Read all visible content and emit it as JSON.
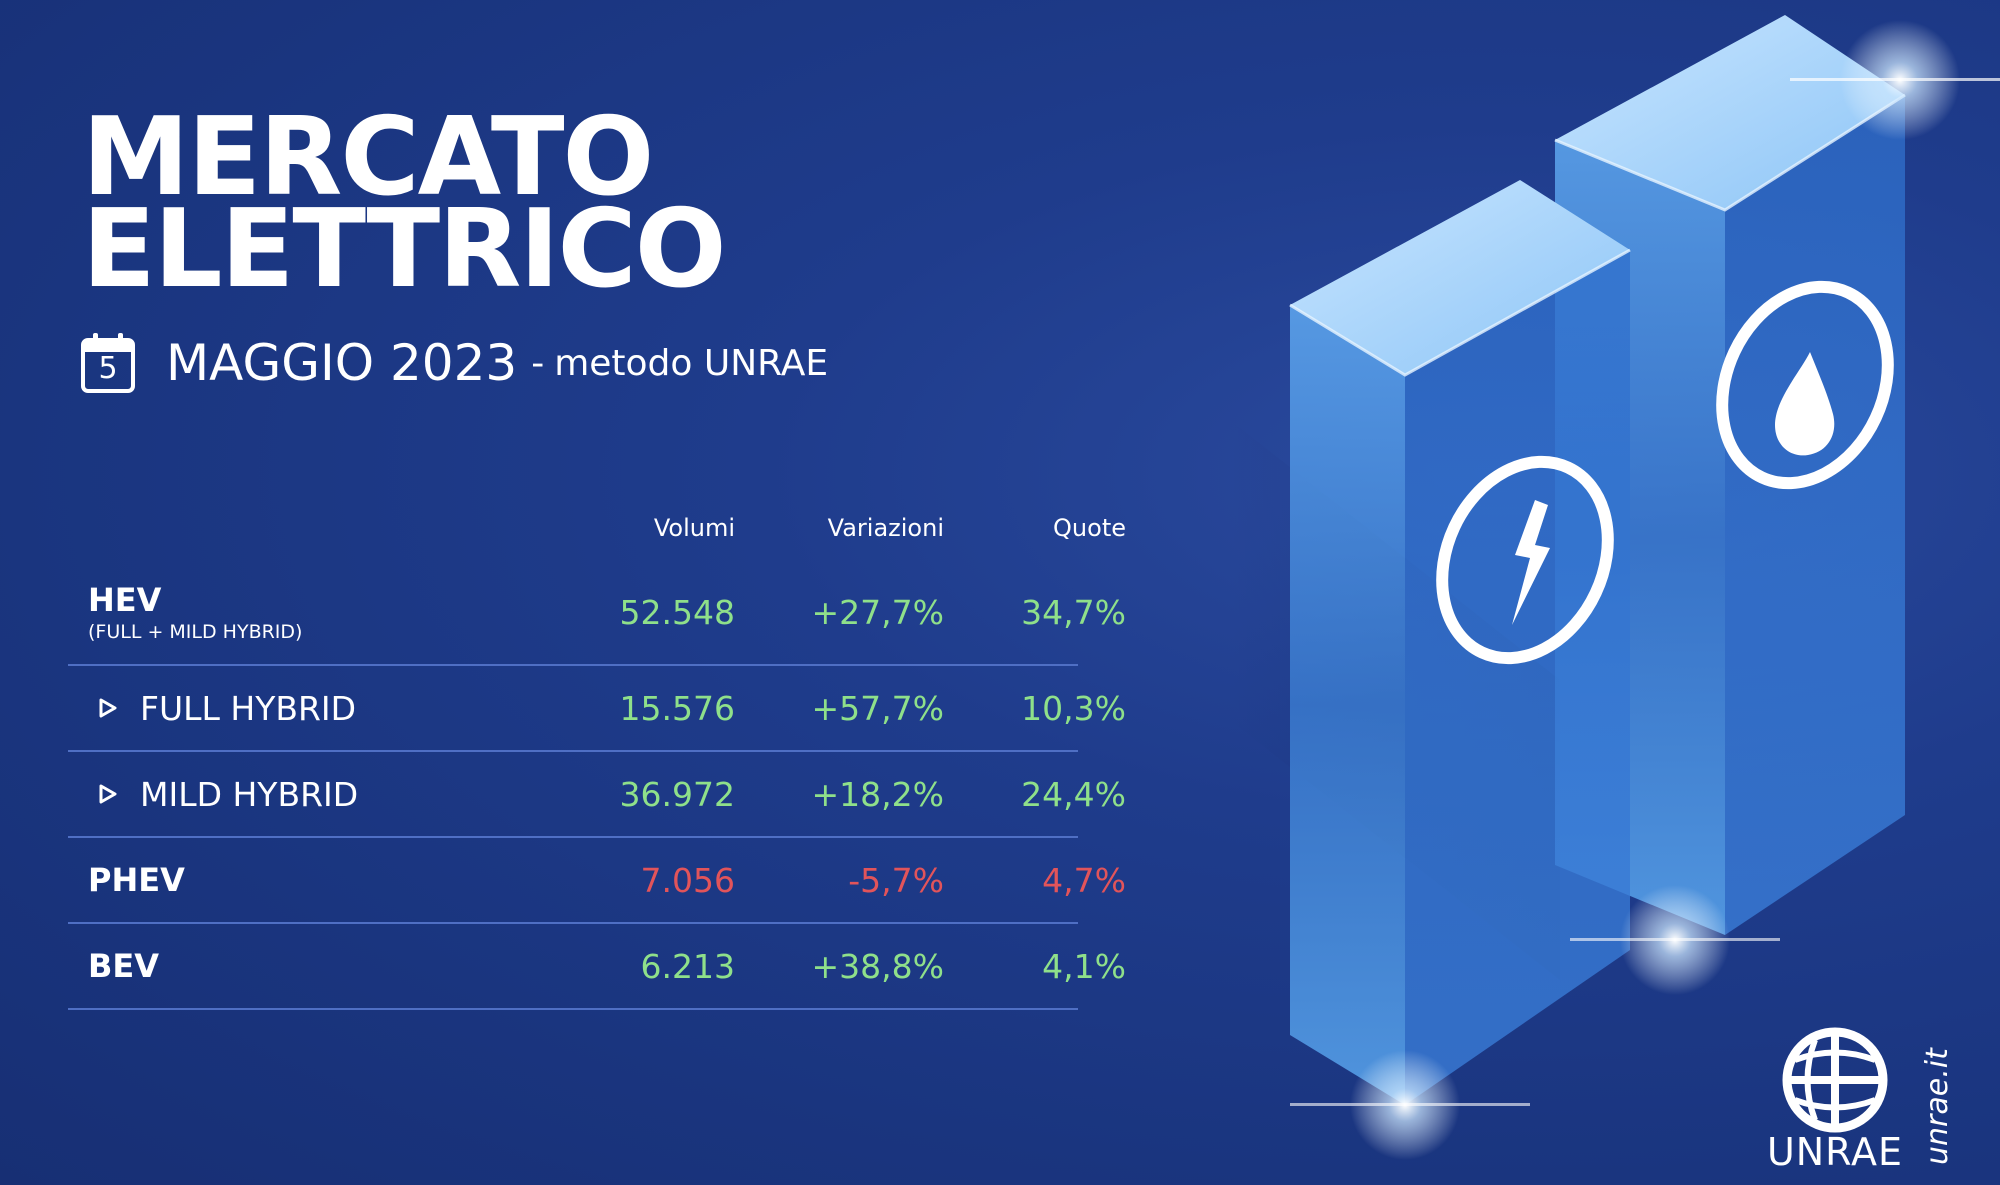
{
  "title": {
    "line1": "MERCATO",
    "line2": "ELETTRICO"
  },
  "subtitle": {
    "calendar_day": "5",
    "period": "MAGGIO 2023",
    "separator": "-",
    "method": "metodo UNRAE",
    "icon": "calendar-icon"
  },
  "table": {
    "headers": [
      "Volumi",
      "Variazioni",
      "Quote"
    ],
    "rows": [
      {
        "label": "HEV",
        "sublabel": "(FULL + MILD HYBRID)",
        "volumi": "52.548",
        "variazioni": "+27,7%",
        "quote": "34,7%",
        "trend": "positive"
      },
      {
        "label": "FULL HYBRID",
        "volumi": "15.576",
        "variazioni": "+57,7%",
        "quote": "10,3%",
        "trend": "positive"
      },
      {
        "label": "MILD HYBRID",
        "volumi": "36.972",
        "variazioni": "+18,2%",
        "quote": "24,4%",
        "trend": "positive"
      },
      {
        "label": "PHEV",
        "volumi": "7.056",
        "variazioni": "-5,7%",
        "quote": "4,7%",
        "trend": "negative"
      },
      {
        "label": "BEV",
        "volumi": "6.213",
        "variazioni": "+38,8%",
        "quote": "4,1%",
        "trend": "positive"
      }
    ]
  },
  "colors": {
    "background": "#1f3c8c",
    "positive": "#8fe08a",
    "negative": "#e2545a",
    "divider": "#4f6fc4"
  },
  "illustration": {
    "left_pillar_icon": "lightning-icon",
    "right_pillar_icon": "fuel-drop-icon"
  },
  "brand": {
    "logo_text": "UNRAE",
    "website": "unrae.it"
  }
}
